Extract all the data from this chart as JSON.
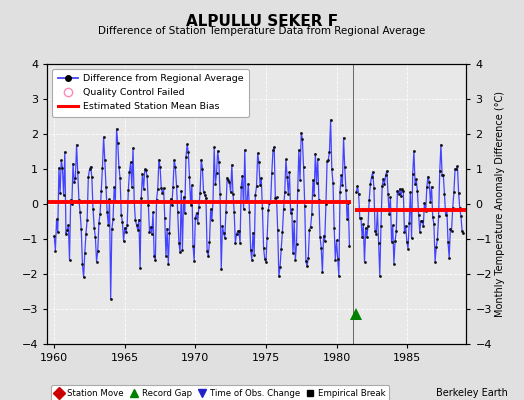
{
  "title": "ALPULLU SEKER F",
  "subtitle": "Difference of Station Temperature Data from Regional Average",
  "ylabel_right": "Monthly Temperature Anomaly Difference (°C)",
  "xlim": [
    1959.5,
    1989.2
  ],
  "ylim": [
    -4,
    4
  ],
  "yticks": [
    -4,
    -3,
    -2,
    -1,
    0,
    1,
    2,
    3,
    4
  ],
  "xticks": [
    1960,
    1965,
    1970,
    1975,
    1980,
    1985
  ],
  "background_color": "#e0e0e0",
  "plot_bg_color": "#e8e8e8",
  "line_color": "#4444ff",
  "dot_color": "#111111",
  "bias1_y": 0.05,
  "bias1_xstart": 1959.5,
  "bias1_xend": 1981.05,
  "bias2_y": -0.17,
  "bias2_xstart": 1981.3,
  "bias2_xend": 1989.2,
  "gap_x": 1981.15,
  "record_gap_x": 1981.4,
  "record_gap_y": -3.15,
  "watermark": "Berkeley Earth",
  "pre_start": 1960.0,
  "pre_end": 1981.0,
  "post_start": 1981.4,
  "post_end": 1989.0,
  "seed": 12
}
